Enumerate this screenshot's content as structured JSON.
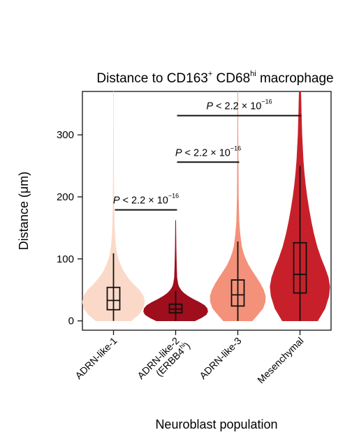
{
  "chart_data": {
    "type": "violin",
    "title": {
      "text": "Distance to CD163",
      "sup1": "+",
      "mid": " CD68",
      "sup2": "hi",
      "tail": " macrophage"
    },
    "xlabel": "Neuroblast population",
    "ylabel": "Distance (μm)",
    "ylim": [
      -15,
      370
    ],
    "yticks": [
      0,
      100,
      200,
      300
    ],
    "categories": [
      {
        "lines": [
          "ADRN-like-1"
        ]
      },
      {
        "lines": [
          "ADRN-like-2",
          "(ERBB4"
        ],
        "line2_sup": "hi",
        "line2_tail": ")"
      },
      {
        "lines": [
          "ADRN-like-3"
        ]
      },
      {
        "lines": [
          "Mesenchymal"
        ]
      }
    ],
    "series": [
      {
        "color": "#fbd9c9",
        "min": 0,
        "q1": 18,
        "median": 33,
        "q3": 54,
        "whisker_high": 109,
        "max": 370,
        "density": [
          [
            0,
            0.55
          ],
          [
            10,
            0.78
          ],
          [
            20,
            0.92
          ],
          [
            30,
            0.97
          ],
          [
            40,
            0.93
          ],
          [
            50,
            0.8
          ],
          [
            60,
            0.6
          ],
          [
            70,
            0.44
          ],
          [
            80,
            0.31
          ],
          [
            90,
            0.22
          ],
          [
            100,
            0.15
          ],
          [
            110,
            0.1
          ],
          [
            120,
            0.07
          ],
          [
            140,
            0.04
          ],
          [
            160,
            0.025
          ],
          [
            200,
            0.012
          ],
          [
            260,
            0.006
          ],
          [
            320,
            0.003
          ],
          [
            370,
            0.002
          ]
        ]
      },
      {
        "color": "#9e0e1c",
        "min": 0,
        "q1": 13,
        "median": 19,
        "q3": 27,
        "whisker_high": 48,
        "max": 162,
        "density": [
          [
            0,
            0.6
          ],
          [
            5,
            0.8
          ],
          [
            10,
            0.95
          ],
          [
            15,
            1.0
          ],
          [
            20,
            0.98
          ],
          [
            25,
            0.9
          ],
          [
            30,
            0.74
          ],
          [
            35,
            0.55
          ],
          [
            40,
            0.38
          ],
          [
            45,
            0.25
          ],
          [
            50,
            0.16
          ],
          [
            55,
            0.1
          ],
          [
            60,
            0.07
          ],
          [
            70,
            0.04
          ],
          [
            90,
            0.025
          ],
          [
            120,
            0.012
          ],
          [
            162,
            0.004
          ]
        ]
      },
      {
        "color": "#f4917a",
        "min": 0,
        "q1": 24,
        "median": 42,
        "q3": 66,
        "whisker_high": 128,
        "max": 370,
        "density": [
          [
            0,
            0.45
          ],
          [
            10,
            0.62
          ],
          [
            20,
            0.78
          ],
          [
            30,
            0.85
          ],
          [
            40,
            0.86
          ],
          [
            50,
            0.8
          ],
          [
            60,
            0.7
          ],
          [
            70,
            0.58
          ],
          [
            80,
            0.45
          ],
          [
            90,
            0.33
          ],
          [
            100,
            0.24
          ],
          [
            110,
            0.17
          ],
          [
            120,
            0.12
          ],
          [
            140,
            0.07
          ],
          [
            160,
            0.04
          ],
          [
            200,
            0.02
          ],
          [
            260,
            0.01
          ],
          [
            320,
            0.005
          ],
          [
            370,
            0.003
          ]
        ]
      },
      {
        "color": "#c8202a",
        "min": 0,
        "q1": 45,
        "median": 75,
        "q3": 126,
        "whisker_high": 250,
        "max": 370,
        "density": [
          [
            0,
            0.55
          ],
          [
            20,
            0.78
          ],
          [
            40,
            0.9
          ],
          [
            55,
            0.93
          ],
          [
            70,
            0.88
          ],
          [
            85,
            0.78
          ],
          [
            100,
            0.66
          ],
          [
            120,
            0.53
          ],
          [
            140,
            0.43
          ],
          [
            160,
            0.35
          ],
          [
            180,
            0.28
          ],
          [
            200,
            0.22
          ],
          [
            220,
            0.17
          ],
          [
            240,
            0.13
          ],
          [
            260,
            0.1
          ],
          [
            280,
            0.08
          ],
          [
            300,
            0.06
          ],
          [
            320,
            0.05
          ],
          [
            340,
            0.04
          ],
          [
            360,
            0.03
          ],
          [
            370,
            0.025
          ]
        ]
      }
    ],
    "annotations": [
      {
        "from": 0,
        "to": 1,
        "y": 179,
        "prefix": "P",
        "text": " < 2.2 × 10",
        "sup": "−16"
      },
      {
        "from": 1,
        "to": 2,
        "y": 256,
        "prefix": "P",
        "text": " < 2.2 × 10",
        "sup": "−16"
      },
      {
        "from": 1,
        "to": 3,
        "y": 331,
        "prefix": "P",
        "text": " < 2.2 × 10",
        "sup": "−16"
      }
    ]
  }
}
